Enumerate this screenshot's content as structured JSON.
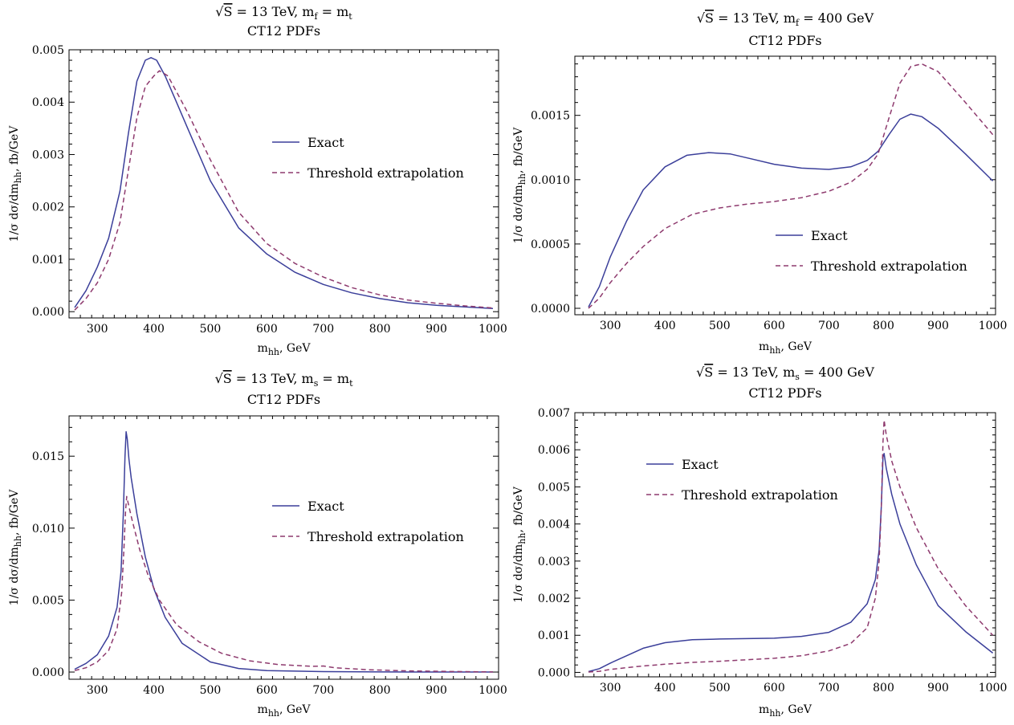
{
  "colors": {
    "exact": "#3b3f9a",
    "threshold": "#8e3a6e",
    "axis": "#000000"
  },
  "chart_data": [
    {
      "type": "line",
      "title_prefix": "√",
      "title_s": "S",
      "title_rest": " = 13 TeV, m",
      "title_sub": "f",
      "title_tail": " = m",
      "title_tail_sub": "t",
      "subtitle": "CT12 PDFs",
      "xlabel_main": "m",
      "xlabel_sub": "hh",
      "xlabel_tail": ", GeV",
      "ylabel_main": "1/σ dσ/dm",
      "ylabel_sub": "hh",
      "ylabel_tail": ", fb/GeV",
      "xlim": [
        250,
        1010
      ],
      "ylim": [
        -0.00012,
        0.005
      ],
      "xticks": [
        "300",
        "400",
        "500",
        "600",
        "700",
        "800",
        "900",
        "1000"
      ],
      "yticks": [
        "0.000",
        "0.001",
        "0.002",
        "0.003",
        "0.004",
        "0.005"
      ],
      "legend_position": "center-right",
      "series": [
        {
          "name": "Exact",
          "style": "solid",
          "x": [
            260,
            280,
            300,
            320,
            340,
            355,
            370,
            385,
            395,
            405,
            420,
            440,
            460,
            500,
            550,
            600,
            650,
            700,
            750,
            800,
            850,
            900,
            950,
            1000
          ],
          "y": [
            8e-05,
            0.0004,
            0.00085,
            0.0014,
            0.0023,
            0.0034,
            0.0044,
            0.0048,
            0.00485,
            0.0048,
            0.0045,
            0.004,
            0.0035,
            0.0025,
            0.0016,
            0.0011,
            0.00075,
            0.00052,
            0.00036,
            0.00025,
            0.00017,
            0.00012,
            9e-05,
            6e-05
          ]
        },
        {
          "name": "Threshold extrapolation",
          "style": "dashed",
          "x": [
            260,
            280,
            300,
            320,
            340,
            355,
            370,
            385,
            400,
            410,
            425,
            440,
            460,
            500,
            550,
            600,
            650,
            700,
            750,
            800,
            850,
            900,
            950,
            1000
          ],
          "y": [
            3e-05,
            0.00025,
            0.00055,
            0.001,
            0.0017,
            0.0027,
            0.0037,
            0.0043,
            0.0045,
            0.0046,
            0.0045,
            0.0042,
            0.0038,
            0.0029,
            0.0019,
            0.0013,
            0.00092,
            0.00066,
            0.00046,
            0.00032,
            0.00022,
            0.00016,
            0.00011,
            7e-05
          ]
        }
      ]
    },
    {
      "type": "line",
      "title_prefix": "√",
      "title_s": "S",
      "title_rest": " = 13 TeV, m",
      "title_sub": "f",
      "title_tail": " = 400 GeV",
      "title_tail_sub": "",
      "subtitle": "CT12 PDFs",
      "xlabel_main": "m",
      "xlabel_sub": "hh",
      "xlabel_tail": ", GeV",
      "ylabel_main": "1/σ dσ/dm",
      "ylabel_sub": "hh",
      "ylabel_tail": ", fb/GeV",
      "xlim": [
        235,
        1005
      ],
      "ylim": [
        -5e-05,
        0.00196
      ],
      "xticks": [
        "300",
        "400",
        "500",
        "600",
        "700",
        "800",
        "900",
        "1000"
      ],
      "yticks": [
        "0.0000",
        "0.0005",
        "0.0010",
        "0.0015"
      ],
      "legend_position": "bottom-right",
      "series": [
        {
          "name": "Exact",
          "style": "solid",
          "x": [
            260,
            280,
            300,
            330,
            360,
            400,
            440,
            480,
            520,
            560,
            600,
            650,
            700,
            740,
            770,
            790,
            810,
            830,
            850,
            870,
            900,
            950,
            1000
          ],
          "y": [
            1e-05,
            0.00017,
            0.0004,
            0.00068,
            0.00092,
            0.0011,
            0.00119,
            0.00121,
            0.0012,
            0.00116,
            0.00112,
            0.00109,
            0.00108,
            0.0011,
            0.00115,
            0.00122,
            0.00135,
            0.00147,
            0.00151,
            0.00149,
            0.0014,
            0.0012,
            0.00099
          ]
        },
        {
          "name": "Threshold extrapolation",
          "style": "dashed",
          "x": [
            260,
            280,
            300,
            330,
            360,
            400,
            450,
            500,
            550,
            600,
            650,
            700,
            740,
            770,
            790,
            810,
            830,
            850,
            870,
            900,
            950,
            1000
          ],
          "y": [
            0.0,
            8e-05,
            0.0002,
            0.00035,
            0.00048,
            0.00062,
            0.00073,
            0.00078,
            0.00081,
            0.00083,
            0.00086,
            0.00091,
            0.00098,
            0.00108,
            0.0012,
            0.00148,
            0.00175,
            0.00188,
            0.0019,
            0.00184,
            0.0016,
            0.00135
          ]
        }
      ]
    },
    {
      "type": "line",
      "title_prefix": "√",
      "title_s": "S",
      "title_rest": " = 13 TeV, m",
      "title_sub": "s",
      "title_tail": " = m",
      "title_tail_sub": "t",
      "subtitle": "CT12 PDFs",
      "xlabel_main": "m",
      "xlabel_sub": "hh",
      "xlabel_tail": ", GeV",
      "ylabel_main": "1/σ dσ/dm",
      "ylabel_sub": "hh",
      "ylabel_tail": ", fb/GeV",
      "xlim": [
        250,
        1010
      ],
      "ylim": [
        -0.0005,
        0.0178
      ],
      "xticks": [
        "300",
        "400",
        "500",
        "600",
        "700",
        "800",
        "900",
        "1000"
      ],
      "yticks": [
        "0.000",
        "0.005",
        "0.010",
        "0.015"
      ],
      "legend_position": "center-right",
      "series": [
        {
          "name": "Exact",
          "style": "solid",
          "x": [
            260,
            280,
            300,
            320,
            335,
            342,
            346,
            349,
            351,
            353,
            356,
            360,
            370,
            385,
            400,
            420,
            450,
            500,
            550,
            600,
            700,
            800,
            900,
            1000
          ],
          "y": [
            0.0002,
            0.0006,
            0.0012,
            0.0025,
            0.0045,
            0.007,
            0.011,
            0.015,
            0.0167,
            0.0162,
            0.0148,
            0.0135,
            0.011,
            0.008,
            0.0058,
            0.0038,
            0.002,
            0.0007,
            0.00025,
            0.0001,
            3e-05,
            1e-05,
            0.0,
            0.0
          ]
        },
        {
          "name": "Threshold extrapolation",
          "style": "dashed",
          "x": [
            260,
            280,
            300,
            320,
            335,
            343,
            347,
            350,
            352,
            356,
            362,
            375,
            390,
            410,
            440,
            480,
            520,
            570,
            620,
            680,
            700,
            720,
            780,
            850,
            920,
            1000
          ],
          "y": [
            0.0001,
            0.0003,
            0.0007,
            0.0015,
            0.003,
            0.0055,
            0.0085,
            0.0112,
            0.0122,
            0.0115,
            0.0105,
            0.0085,
            0.0067,
            0.005,
            0.0033,
            0.0021,
            0.0013,
            0.00078,
            0.00052,
            0.0004,
            0.00042,
            0.0003,
            0.00016,
            8e-05,
            4e-05,
            1e-05
          ]
        }
      ]
    },
    {
      "type": "line",
      "title_prefix": "√",
      "title_s": "S",
      "title_rest": " = 13 TeV, m",
      "title_sub": "s",
      "title_tail": " = 400 GeV",
      "title_tail_sub": "",
      "subtitle": "CT12 PDFs",
      "xlabel_main": "m",
      "xlabel_sub": "hh",
      "xlabel_tail": ", GeV",
      "ylabel_main": "1/σ dσ/dm",
      "ylabel_sub": "hh",
      "ylabel_tail": ", fb/GeV",
      "xlim": [
        235,
        1005
      ],
      "ylim": [
        -0.00012,
        0.007
      ],
      "xticks": [
        "300",
        "400",
        "500",
        "600",
        "700",
        "800",
        "900",
        "1000"
      ],
      "yticks": [
        "0.000",
        "0.001",
        "0.002",
        "0.003",
        "0.004",
        "0.005",
        "0.006",
        "0.007"
      ],
      "legend_position": "top-left",
      "series": [
        {
          "name": "Exact",
          "style": "solid",
          "x": [
            260,
            280,
            300,
            330,
            360,
            400,
            450,
            500,
            550,
            600,
            650,
            700,
            740,
            770,
            785,
            792,
            796,
            799,
            801,
            805,
            815,
            830,
            860,
            900,
            950,
            1000
          ],
          "y": [
            2e-05,
            0.0001,
            0.00025,
            0.00045,
            0.00065,
            0.0008,
            0.00088,
            0.0009,
            0.00091,
            0.00092,
            0.00097,
            0.00108,
            0.00135,
            0.00185,
            0.0025,
            0.0033,
            0.0045,
            0.0058,
            0.0059,
            0.0055,
            0.0048,
            0.004,
            0.0029,
            0.0018,
            0.0011,
            0.00052
          ]
        },
        {
          "name": "Threshold extrapolation",
          "style": "dashed",
          "x": [
            260,
            280,
            300,
            350,
            400,
            450,
            500,
            550,
            600,
            650,
            700,
            740,
            770,
            785,
            792,
            796,
            799,
            801,
            805,
            815,
            830,
            860,
            900,
            950,
            1000
          ],
          "y": [
            1e-05,
            3e-05,
            8e-05,
            0.00016,
            0.00022,
            0.00027,
            0.0003,
            0.00034,
            0.00038,
            0.00045,
            0.00058,
            0.00078,
            0.0012,
            0.002,
            0.003,
            0.0045,
            0.0062,
            0.0068,
            0.0064,
            0.0057,
            0.005,
            0.0039,
            0.0028,
            0.0018,
            0.001
          ]
        }
      ]
    }
  ]
}
